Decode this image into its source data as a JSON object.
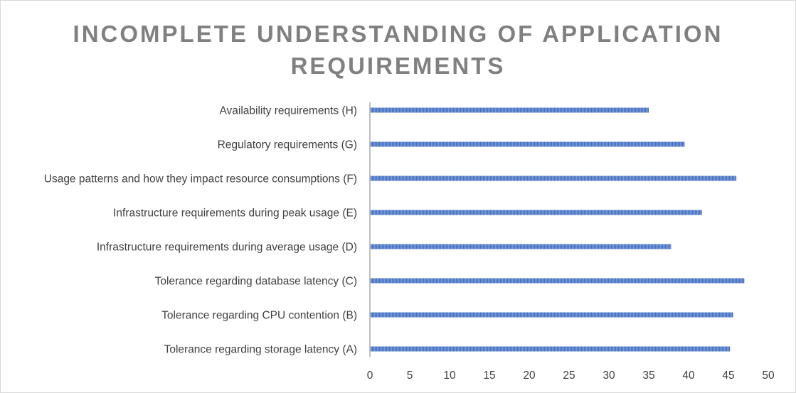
{
  "chart_data": {
    "type": "bar",
    "orientation": "horizontal",
    "title": "INCOMPLETE UNDERSTANDING OF APPLICATION REQUIREMENTS",
    "title_lines": [
      "INCOMPLETE UNDERSTANDING OF APPLICATION",
      "REQUIREMENTS"
    ],
    "categories": [
      "Availability requirements (H)",
      "Regulatory requirements (G)",
      "Usage patterns and how they impact resource consumptions (F)",
      "Infrastructure requirements during peak usage (E)",
      "Infrastructure requirements during average usage (D)",
      "Tolerance regarding database latency (C)",
      "Tolerance regarding CPU contention (B)",
      "Tolerance regarding storage latency (A)"
    ],
    "values": [
      35,
      39.5,
      46,
      41.7,
      37.8,
      47,
      45.6,
      45.2
    ],
    "xlim": [
      0,
      50
    ],
    "xticks": [
      0,
      5,
      10,
      15,
      20,
      25,
      30,
      35,
      40,
      45,
      50
    ],
    "xlabel": "",
    "ylabel": "",
    "grid": false,
    "legend": "none",
    "bar_color": "#4472c4",
    "axis_color": "#bfbfbf"
  }
}
